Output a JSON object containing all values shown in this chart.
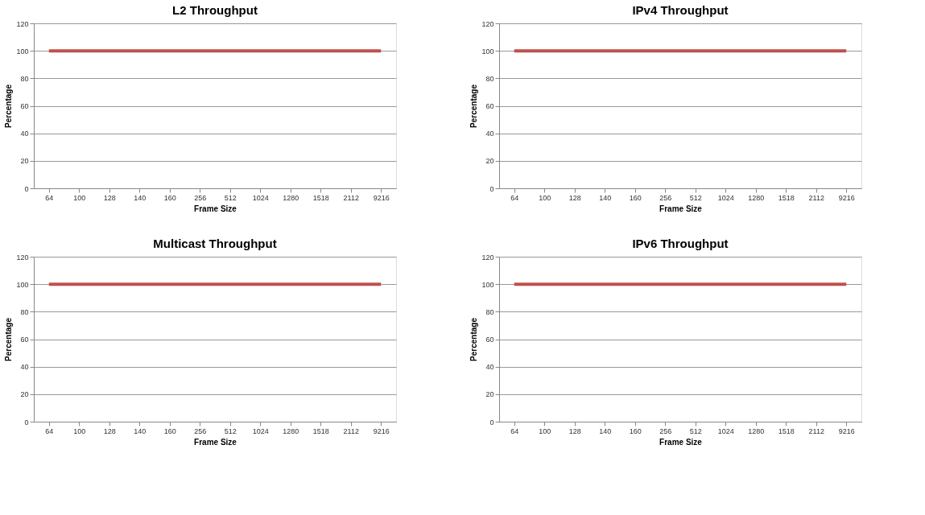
{
  "chart_data": [
    {
      "type": "line",
      "title": "L2 Throughput",
      "xlabel": "Frame Size",
      "ylabel": "Percentage",
      "categories": [
        "64",
        "100",
        "128",
        "140",
        "160",
        "256",
        "512",
        "1024",
        "1280",
        "1518",
        "2112",
        "9216"
      ],
      "series": [
        {
          "color": "#c0504d",
          "values": [
            100,
            100,
            100,
            100,
            100,
            100,
            100,
            100,
            100,
            100,
            100,
            100
          ]
        }
      ],
      "ylim": [
        0,
        120
      ],
      "yticks": [
        0,
        20,
        40,
        60,
        80,
        100,
        120
      ],
      "grid": "y",
      "marker": "none",
      "line_style": "solid"
    },
    {
      "type": "line",
      "title": "IPv4 Throughput",
      "xlabel": "Frame Size",
      "ylabel": "Percentage",
      "categories": [
        "64",
        "100",
        "128",
        "140",
        "160",
        "256",
        "512",
        "1024",
        "1280",
        "1518",
        "2112",
        "9216"
      ],
      "series": [
        {
          "color": "#c0504d",
          "values": [
            100,
            100,
            100,
            100,
            100,
            100,
            100,
            100,
            100,
            100,
            100,
            100
          ]
        }
      ],
      "ylim": [
        0,
        120
      ],
      "yticks": [
        0,
        20,
        40,
        60,
        80,
        100,
        120
      ],
      "grid": "y",
      "marker": "none",
      "line_style": "solid"
    },
    {
      "type": "line",
      "title": "Multicast Throughput",
      "xlabel": "Frame Size",
      "ylabel": "Percentage",
      "categories": [
        "64",
        "100",
        "128",
        "140",
        "160",
        "256",
        "512",
        "1024",
        "1280",
        "1518",
        "2112",
        "9216"
      ],
      "series": [
        {
          "color": "#c0504d",
          "values": [
            100,
            100,
            100,
            100,
            100,
            100,
            100,
            100,
            100,
            100,
            100,
            100
          ]
        }
      ],
      "ylim": [
        0,
        120
      ],
      "yticks": [
        0,
        20,
        40,
        60,
        80,
        100,
        120
      ],
      "grid": "y",
      "marker": "none",
      "line_style": "solid"
    },
    {
      "type": "line",
      "title": "IPv6 Throughput",
      "xlabel": "Frame Size",
      "ylabel": "Percentage",
      "categories": [
        "64",
        "100",
        "128",
        "140",
        "160",
        "256",
        "512",
        "1024",
        "1280",
        "1518",
        "2112",
        "9216"
      ],
      "series": [
        {
          "color": "#c0504d",
          "values": [
            100,
            100,
            100,
            100,
            100,
            100,
            100,
            100,
            100,
            100,
            100,
            100
          ]
        }
      ],
      "ylim": [
        0,
        120
      ],
      "yticks": [
        0,
        20,
        40,
        60,
        80,
        100,
        120
      ],
      "grid": "y",
      "marker": "none",
      "line_style": "solid"
    }
  ]
}
